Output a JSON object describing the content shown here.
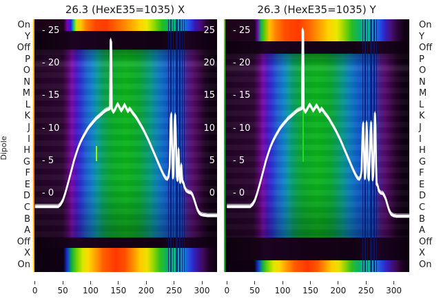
{
  "row_axis": {
    "label": "Dipole",
    "rows": [
      "On",
      "Y",
      "Off",
      "P",
      "O",
      "N",
      "M",
      "L",
      "K",
      "J",
      "I",
      "H",
      "G",
      "F",
      "E",
      "D",
      "C",
      "B",
      "A",
      "Off",
      "X",
      "On"
    ]
  },
  "y_ticks": [
    25,
    20,
    15,
    10,
    5,
    0
  ],
  "x_ticks": [
    0,
    50,
    100,
    150,
    200,
    250,
    300
  ],
  "colors": {
    "background": "#ffffff",
    "text": "#1a1a1a",
    "curve": "#ffffff",
    "inside_tick_text": "#ffffff",
    "heat_green": "#0cb41c",
    "heat_blue": "#1058c8",
    "heat_purple": "#540a6a",
    "heat_red": "#ff3c00",
    "heat_yellow": "#ffd200",
    "heat_dark": "#140114"
  },
  "chart_data": [
    {
      "type": "heatmap+line",
      "title": "26.3 (HexE35=1035) X",
      "xlabel": "",
      "ylabel": "Dipole",
      "x_ticks": [
        0,
        50,
        100,
        150,
        200,
        250,
        300
      ],
      "y_ticks": [
        25,
        20,
        15,
        10,
        5,
        0
      ],
      "x_range": [
        0,
        330
      ],
      "bright_rows": {
        "top": [
          "On"
        ],
        "bottom": [
          "X",
          "On"
        ]
      },
      "profile": {
        "name": "overlaid profile traces (white)",
        "points": [
          [
            0,
            -2
          ],
          [
            30,
            -2
          ],
          [
            42,
            -2
          ],
          [
            46,
            -1.7
          ],
          [
            50,
            -1.1
          ],
          [
            54,
            -0.1
          ],
          [
            58,
            1.1
          ],
          [
            62,
            2.4
          ],
          [
            66,
            3.7
          ],
          [
            70,
            5
          ],
          [
            74,
            6.1
          ],
          [
            78,
            7.1
          ],
          [
            82,
            7.9
          ],
          [
            86,
            8.6
          ],
          [
            90,
            9.2
          ],
          [
            94,
            9.8
          ],
          [
            98,
            10.3
          ],
          [
            102,
            10.7
          ],
          [
            106,
            11.1
          ],
          [
            110,
            11.5
          ],
          [
            114,
            11.8
          ],
          [
            118,
            12.1
          ],
          [
            122,
            12.4
          ],
          [
            126,
            12.7
          ],
          [
            130,
            12.9
          ],
          [
            133,
            13
          ],
          [
            135,
            13.1
          ],
          [
            136,
            23.6
          ],
          [
            137,
            23.3
          ],
          [
            138,
            13
          ],
          [
            141,
            12.5
          ],
          [
            144,
            12.9
          ],
          [
            147,
            13.5
          ],
          [
            149,
            13.7
          ],
          [
            152,
            13.2
          ],
          [
            155,
            12.7
          ],
          [
            158,
            13.1
          ],
          [
            161,
            13.6
          ],
          [
            164,
            13.1
          ],
          [
            167,
            12.6
          ],
          [
            170,
            13
          ],
          [
            173,
            12.7
          ],
          [
            176,
            12.3
          ],
          [
            180,
            11.9
          ],
          [
            184,
            11.4
          ],
          [
            188,
            10.8
          ],
          [
            192,
            10.2
          ],
          [
            196,
            9.6
          ],
          [
            200,
            8.9
          ],
          [
            204,
            8.2
          ],
          [
            208,
            7.4
          ],
          [
            212,
            6.6
          ],
          [
            216,
            5.8
          ],
          [
            220,
            5
          ],
          [
            224,
            4.2
          ],
          [
            228,
            3.4
          ],
          [
            232,
            2.7
          ],
          [
            235,
            2.3
          ],
          [
            238,
            2.2
          ],
          [
            240,
            2.6
          ],
          [
            242,
            4
          ],
          [
            243,
            8
          ],
          [
            244,
            11.5
          ],
          [
            245,
            12.2
          ],
          [
            246,
            9
          ],
          [
            247,
            4.5
          ],
          [
            248,
            2.4
          ],
          [
            249,
            3
          ],
          [
            250,
            7
          ],
          [
            251,
            11
          ],
          [
            252,
            12.1
          ],
          [
            253,
            10
          ],
          [
            254,
            5.5
          ],
          [
            255,
            2.6
          ],
          [
            256,
            2
          ],
          [
            257,
            4.5
          ],
          [
            258,
            6.8
          ],
          [
            259,
            4.5
          ],
          [
            260,
            2.2
          ],
          [
            261,
            1.7
          ],
          [
            262,
            3
          ],
          [
            263,
            4.4
          ],
          [
            264,
            2.8
          ],
          [
            265,
            1.8
          ],
          [
            267,
            1.6
          ],
          [
            269,
            0.9
          ],
          [
            272,
            0.4
          ],
          [
            276,
            0.2
          ],
          [
            280,
            0.1
          ],
          [
            283,
            -0.2
          ],
          [
            286,
            -0.9
          ],
          [
            289,
            -1.7
          ],
          [
            292,
            -2.5
          ],
          [
            295,
            -3
          ],
          [
            298,
            -3.2
          ],
          [
            302,
            -3.3
          ],
          [
            310,
            -3.4
          ],
          [
            330,
            -3.4
          ]
        ]
      }
    },
    {
      "type": "heatmap+line",
      "title": "26.3 (HexE35=1035) Y",
      "xlabel": "",
      "ylabel": "Dipole",
      "x_ticks": [
        0,
        50,
        100,
        150,
        200,
        250,
        300
      ],
      "y_ticks": [
        25,
        20,
        15,
        10,
        5,
        0
      ],
      "x_range": [
        0,
        330
      ],
      "bright_rows": {
        "top": [
          "On",
          "Y"
        ],
        "bottom": [
          "On"
        ]
      },
      "profile": {
        "name": "overlaid profile traces (white)",
        "points": [
          [
            0,
            -2
          ],
          [
            30,
            -2
          ],
          [
            42,
            -2
          ],
          [
            46,
            -1.7
          ],
          [
            50,
            -1.1
          ],
          [
            54,
            -0.1
          ],
          [
            58,
            1.1
          ],
          [
            62,
            2.4
          ],
          [
            66,
            3.7
          ],
          [
            70,
            5
          ],
          [
            74,
            6.1
          ],
          [
            78,
            7.1
          ],
          [
            82,
            7.9
          ],
          [
            86,
            8.6
          ],
          [
            90,
            9.2
          ],
          [
            94,
            9.8
          ],
          [
            98,
            10.3
          ],
          [
            102,
            10.7
          ],
          [
            106,
            11.1
          ],
          [
            110,
            11.5
          ],
          [
            114,
            11.8
          ],
          [
            118,
            12.1
          ],
          [
            122,
            12.4
          ],
          [
            126,
            12.7
          ],
          [
            130,
            12.9
          ],
          [
            133,
            13
          ],
          [
            135,
            13.1
          ],
          [
            136,
            25.2
          ],
          [
            137,
            24.9
          ],
          [
            138,
            13
          ],
          [
            141,
            12.5
          ],
          [
            144,
            12.9
          ],
          [
            147,
            13.4
          ],
          [
            149,
            13.6
          ],
          [
            152,
            13.2
          ],
          [
            155,
            12.7
          ],
          [
            158,
            13.1
          ],
          [
            161,
            13.5
          ],
          [
            164,
            13.1
          ],
          [
            167,
            12.6
          ],
          [
            170,
            13
          ],
          [
            173,
            12.7
          ],
          [
            176,
            12.3
          ],
          [
            180,
            11.9
          ],
          [
            184,
            11.4
          ],
          [
            188,
            10.8
          ],
          [
            192,
            10.2
          ],
          [
            196,
            9.6
          ],
          [
            200,
            8.9
          ],
          [
            204,
            8.2
          ],
          [
            208,
            7.4
          ],
          [
            212,
            6.6
          ],
          [
            216,
            5.8
          ],
          [
            220,
            5
          ],
          [
            224,
            4.2
          ],
          [
            228,
            3.4
          ],
          [
            232,
            2.7
          ],
          [
            235,
            2.3
          ],
          [
            238,
            2.2
          ],
          [
            240,
            2.5
          ],
          [
            242,
            3.5
          ],
          [
            243,
            7
          ],
          [
            244,
            10
          ],
          [
            245,
            10.8
          ],
          [
            246,
            8
          ],
          [
            247,
            4
          ],
          [
            248,
            2.3
          ],
          [
            249,
            3.2
          ],
          [
            250,
            7.5
          ],
          [
            251,
            10.9
          ],
          [
            252,
            9
          ],
          [
            253,
            4.5
          ],
          [
            254,
            2.4
          ],
          [
            255,
            2.1
          ],
          [
            256,
            4
          ],
          [
            257,
            7
          ],
          [
            258,
            9.5
          ],
          [
            259,
            10.9
          ],
          [
            260,
            9
          ],
          [
            261,
            4.5
          ],
          [
            262,
            2.1
          ],
          [
            263,
            2.8
          ],
          [
            264,
            5
          ],
          [
            265,
            9
          ],
          [
            266,
            12.3
          ],
          [
            267,
            10.5
          ],
          [
            268,
            4.5
          ],
          [
            269,
            1.4
          ],
          [
            271,
            1.2
          ],
          [
            273,
            0.4
          ],
          [
            276,
            0.1
          ],
          [
            280,
            0
          ],
          [
            283,
            -0.4
          ],
          [
            286,
            -1
          ],
          [
            289,
            -1.9
          ],
          [
            292,
            -2.7
          ],
          [
            295,
            -3.2
          ],
          [
            299,
            -3.4
          ],
          [
            305,
            -3.5
          ],
          [
            330,
            -3.5
          ]
        ]
      }
    }
  ]
}
